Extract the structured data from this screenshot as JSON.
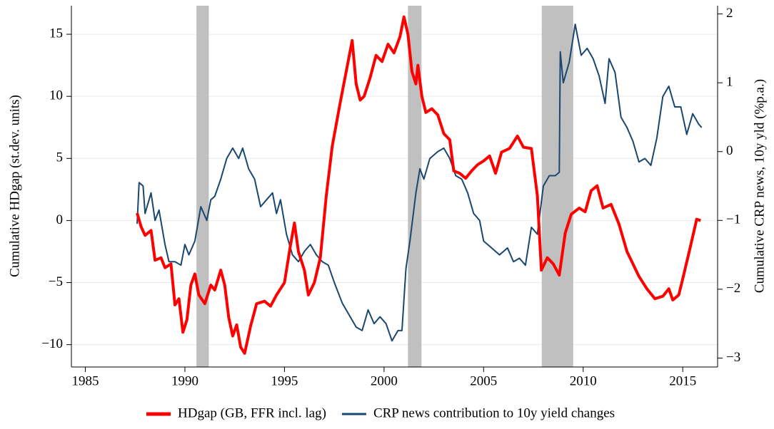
{
  "chart_data": {
    "type": "line",
    "ylabel": "Cumulative HDgap (st.dev. units)",
    "y2label": "Cumulative CRP news, 10y yld (%p.a.)",
    "xlim": [
      1984.3,
      2016.75
    ],
    "xticks": [
      1985,
      1990,
      1995,
      2000,
      2005,
      2010,
      2015
    ],
    "ylim": [
      -11.8,
      17.3
    ],
    "yticks": [
      {
        "value": -10,
        "label": "−10"
      },
      {
        "value": -5,
        "label": "−5"
      },
      0,
      5,
      10,
      15
    ],
    "y2lim": [
      -3.13,
      2.12
    ],
    "y2ticks": [
      {
        "value": -3,
        "label": "−3"
      },
      {
        "value": -2,
        "label": "−2"
      },
      {
        "value": -1,
        "label": "−1"
      },
      0,
      1,
      2
    ],
    "grid": true,
    "shaded_regions": [
      [
        1990.58,
        1991.2
      ],
      [
        2001.2,
        2001.88
      ],
      [
        2007.92,
        2009.5
      ]
    ],
    "shade_color": "#c0c0c0",
    "legend": "bottom",
    "series": [
      {
        "name": "HDgap (GB, FFR incl. lag)",
        "color": "#ff0000",
        "width": 4,
        "x": [
          1987.6,
          1987.8,
          1988.0,
          1988.3,
          1988.5,
          1988.8,
          1989.0,
          1989.3,
          1989.5,
          1989.7,
          1989.9,
          1990.1,
          1990.3,
          1990.5,
          1990.7,
          1991.0,
          1991.3,
          1991.5,
          1991.8,
          1992.0,
          1992.2,
          1992.4,
          1992.6,
          1992.8,
          1993.0,
          1993.3,
          1993.6,
          1994.0,
          1994.3,
          1994.6,
          1995.0,
          1995.3,
          1995.5,
          1995.7,
          1996.0,
          1996.2,
          1996.5,
          1996.8,
          1997.1,
          1997.4,
          1997.8,
          1998.1,
          1998.4,
          1998.6,
          1998.8,
          1999.0,
          1999.3,
          1999.6,
          1999.9,
          2000.2,
          2000.5,
          2000.8,
          2001.0,
          2001.2,
          2001.4,
          2001.6,
          2001.7,
          2001.9,
          2002.1,
          2002.4,
          2002.7,
          2003.0,
          2003.3,
          2003.5,
          2003.8,
          2004.1,
          2004.4,
          2004.7,
          2005.0,
          2005.3,
          2005.6,
          2005.9,
          2006.3,
          2006.7,
          2007.0,
          2007.4,
          2007.7,
          2007.9,
          2008.2,
          2008.5,
          2008.8,
          2009.1,
          2009.4,
          2009.8,
          2010.1,
          2010.4,
          2010.7,
          2011.0,
          2011.4,
          2011.8,
          2012.2,
          2012.5,
          2012.8,
          2013.2,
          2013.6,
          2014.0,
          2014.3,
          2014.5,
          2014.8,
          2015.0,
          2015.4,
          2015.7,
          2015.9
        ],
        "values": [
          0.6,
          -0.5,
          -1.2,
          -0.8,
          -3.2,
          -3.0,
          -3.8,
          -3.5,
          -6.8,
          -6.3,
          -9.0,
          -8.0,
          -5.2,
          -4.3,
          -6.0,
          -6.7,
          -5.2,
          -5.6,
          -4.0,
          -5.2,
          -7.8,
          -9.3,
          -8.4,
          -10.2,
          -10.7,
          -8.5,
          -6.7,
          -6.5,
          -6.9,
          -6.0,
          -5.0,
          -2.0,
          -0.2,
          -2.5,
          -4.0,
          -6.0,
          -5.0,
          -3.0,
          2.0,
          6.0,
          9.5,
          12.0,
          14.5,
          11.0,
          9.7,
          10.0,
          11.5,
          13.3,
          12.8,
          14.2,
          13.5,
          14.8,
          16.4,
          15.0,
          12.0,
          11.0,
          12.5,
          10.0,
          8.7,
          9.0,
          8.5,
          7.0,
          6.5,
          4.0,
          3.8,
          3.4,
          4.0,
          4.5,
          4.8,
          5.2,
          3.8,
          5.5,
          5.8,
          6.8,
          5.9,
          5.8,
          2.0,
          -4.0,
          -3.0,
          -3.5,
          -4.4,
          -1.0,
          0.5,
          1.0,
          0.7,
          2.4,
          2.8,
          1.0,
          1.3,
          -0.3,
          -2.5,
          -3.5,
          -4.5,
          -5.5,
          -6.3,
          -6.1,
          -5.5,
          -6.4,
          -6.0,
          -4.7,
          -2.0,
          0.1,
          0.0
        ]
      },
      {
        "name": "CRP news contribution to 10y yield changes",
        "color": "#1a476f",
        "width": 2,
        "axis": "y2",
        "x": [
          1987.6,
          1987.7,
          1987.9,
          1988.0,
          1988.3,
          1988.5,
          1988.7,
          1989.0,
          1989.2,
          1989.5,
          1989.8,
          1990.0,
          1990.2,
          1990.5,
          1990.8,
          1991.1,
          1991.3,
          1991.5,
          1991.8,
          1992.1,
          1992.4,
          1992.7,
          1992.9,
          1993.2,
          1993.5,
          1993.8,
          1994.1,
          1994.4,
          1994.6,
          1994.8,
          1995.1,
          1995.4,
          1995.7,
          1996.0,
          1996.3,
          1996.6,
          1996.9,
          1997.2,
          1997.5,
          1997.9,
          1998.3,
          1998.6,
          1998.9,
          1999.2,
          1999.5,
          1999.8,
          2000.1,
          2000.4,
          2000.7,
          2000.9,
          2001.1,
          2001.3,
          2001.6,
          2001.8,
          2002.0,
          2002.3,
          2002.7,
          2003.0,
          2003.3,
          2003.6,
          2003.9,
          2004.2,
          2004.5,
          2004.8,
          2005.0,
          2005.4,
          2005.8,
          2006.2,
          2006.5,
          2006.8,
          2007.1,
          2007.4,
          2007.7,
          2008.0,
          2008.3,
          2008.6,
          2008.8,
          2008.85,
          2009.0,
          2009.3,
          2009.6,
          2009.9,
          2010.2,
          2010.5,
          2010.8,
          2011.1,
          2011.3,
          2011.6,
          2011.9,
          2012.2,
          2012.5,
          2012.8,
          2013.1,
          2013.4,
          2013.7,
          2014.0,
          2014.3,
          2014.6,
          2014.9,
          2015.2,
          2015.5,
          2015.8,
          2015.95
        ],
        "values": [
          -1.05,
          -0.45,
          -0.5,
          -0.9,
          -0.6,
          -1.0,
          -0.85,
          -1.35,
          -1.6,
          -1.6,
          -1.65,
          -1.35,
          -1.5,
          -1.3,
          -0.8,
          -1.0,
          -0.7,
          -0.65,
          -0.4,
          -0.1,
          0.05,
          -0.1,
          0.05,
          -0.25,
          -0.4,
          -0.8,
          -0.7,
          -0.6,
          -0.9,
          -0.7,
          -1.2,
          -1.5,
          -1.6,
          -1.45,
          -1.35,
          -1.5,
          -1.6,
          -1.65,
          -1.9,
          -2.2,
          -2.4,
          -2.55,
          -2.6,
          -2.3,
          -2.5,
          -2.4,
          -2.5,
          -2.75,
          -2.6,
          -2.6,
          -1.7,
          -1.3,
          -0.6,
          -0.25,
          -0.4,
          -0.1,
          0.0,
          0.05,
          -0.1,
          -0.35,
          -0.4,
          -0.6,
          -0.9,
          -1.0,
          -1.3,
          -1.4,
          -1.5,
          -1.4,
          -1.6,
          -1.55,
          -1.65,
          -1.1,
          -1.2,
          -0.5,
          -0.35,
          -0.35,
          -0.3,
          1.45,
          1.0,
          1.3,
          1.85,
          1.4,
          1.5,
          1.35,
          1.1,
          0.7,
          1.35,
          1.15,
          0.5,
          0.35,
          0.15,
          -0.15,
          -0.1,
          -0.2,
          0.2,
          0.8,
          0.95,
          0.65,
          0.65,
          0.25,
          0.55,
          0.4,
          0.35
        ]
      }
    ]
  }
}
